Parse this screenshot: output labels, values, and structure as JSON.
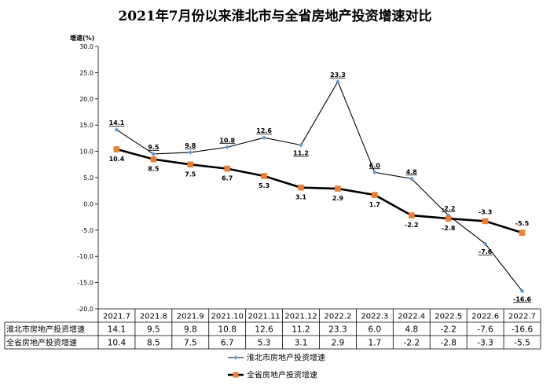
{
  "page": {
    "title": "2021年7月份以来淮北市与全省房地产投资增速对比"
  },
  "chart_data": {
    "type": "line",
    "title": "2021年7月份以来淮北市与全省房地产投资增速对比",
    "ylabel": "增速(%)",
    "xlabel": "",
    "ylim": [
      -20,
      30
    ],
    "y_ticks": [
      "30.0",
      "25.0",
      "20.0",
      "15.0",
      "10.0",
      "5.0",
      "0.0",
      "-5.0",
      "-10.0",
      "-15.0",
      "-20.0"
    ],
    "grid": false,
    "legend_position": "bottom",
    "categories": [
      "2021.7",
      "2021.8",
      "2021.9",
      "2021.10",
      "2021.11",
      "2021.12",
      "2022.2",
      "2022.3",
      "2022.4",
      "2022.5",
      "2022.6",
      "2022.7"
    ],
    "series": [
      {
        "name": "淮北市房地产投资增速",
        "values": [
          14.1,
          9.5,
          9.8,
          10.8,
          12.6,
          11.2,
          23.3,
          6.0,
          4.8,
          -2.2,
          -7.6,
          -16.6
        ],
        "labels": [
          "14.1",
          "9.5",
          "9.8",
          "10.8",
          "12.6",
          "11.2",
          "23.3",
          "6.0",
          "4.8",
          "-2.2",
          "-7.6",
          "-16.6"
        ],
        "color": "#000000",
        "marker_color": "#5b9bd5",
        "marker": "diamond"
      },
      {
        "name": "全省房地产投资增速",
        "values": [
          10.4,
          8.5,
          7.5,
          6.7,
          5.3,
          3.1,
          2.9,
          1.7,
          -2.2,
          -2.8,
          -3.3,
          -5.5
        ],
        "labels": [
          "10.4",
          "8.5",
          "7.5",
          "6.7",
          "5.3",
          "3.1",
          "2.9",
          "1.7",
          "-2.2",
          "-2.8",
          "-3.3",
          "-5.5"
        ],
        "color": "#000000",
        "marker_color": "#ed7d31",
        "marker": "square"
      }
    ]
  }
}
